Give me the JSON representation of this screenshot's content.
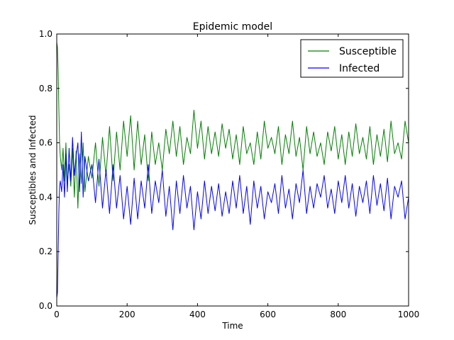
{
  "chart_data": {
    "type": "line",
    "title": "Epidemic model",
    "xlabel": "Time",
    "ylabel": "Susceptibles and Infected",
    "xlim": [
      0,
      1000
    ],
    "ylim": [
      0.0,
      1.0
    ],
    "xticks": [
      "0",
      "200",
      "400",
      "600",
      "800",
      "1000"
    ],
    "yticks": [
      "0.0",
      "0.2",
      "0.4",
      "0.6",
      "0.8",
      "1.0"
    ],
    "grid": false,
    "legend_position": "top-right",
    "series": [
      {
        "name": "Susceptible",
        "color": "#008000",
        "x": [
          0,
          2,
          4,
          6,
          8,
          10,
          14,
          18,
          22,
          26,
          30,
          35,
          40,
          45,
          50,
          55,
          60,
          65,
          70,
          75,
          80,
          90,
          100,
          110,
          120,
          130,
          140,
          150,
          160,
          170,
          180,
          190,
          200,
          210,
          220,
          230,
          240,
          250,
          260,
          270,
          280,
          290,
          300,
          310,
          320,
          330,
          340,
          350,
          360,
          370,
          380,
          390,
          400,
          410,
          420,
          430,
          440,
          450,
          460,
          470,
          480,
          490,
          500,
          510,
          520,
          530,
          540,
          550,
          560,
          570,
          580,
          590,
          600,
          610,
          620,
          630,
          640,
          650,
          660,
          670,
          680,
          690,
          700,
          710,
          720,
          730,
          740,
          750,
          760,
          770,
          780,
          790,
          800,
          810,
          820,
          830,
          840,
          850,
          860,
          870,
          880,
          890,
          900,
          910,
          920,
          930,
          940,
          950,
          960,
          970,
          980,
          990,
          1000
        ],
        "values": [
          0.97,
          0.95,
          0.86,
          0.72,
          0.6,
          0.55,
          0.5,
          0.58,
          0.46,
          0.6,
          0.45,
          0.52,
          0.44,
          0.58,
          0.4,
          0.57,
          0.36,
          0.56,
          0.45,
          0.6,
          0.42,
          0.55,
          0.47,
          0.6,
          0.44,
          0.62,
          0.48,
          0.66,
          0.46,
          0.64,
          0.5,
          0.68,
          0.55,
          0.7,
          0.5,
          0.68,
          0.52,
          0.63,
          0.46,
          0.64,
          0.52,
          0.6,
          0.5,
          0.65,
          0.56,
          0.68,
          0.55,
          0.66,
          0.52,
          0.62,
          0.56,
          0.72,
          0.58,
          0.68,
          0.54,
          0.66,
          0.56,
          0.64,
          0.55,
          0.67,
          0.58,
          0.65,
          0.54,
          0.63,
          0.52,
          0.66,
          0.56,
          0.6,
          0.52,
          0.64,
          0.54,
          0.68,
          0.58,
          0.62,
          0.56,
          0.66,
          0.52,
          0.63,
          0.56,
          0.68,
          0.55,
          0.62,
          0.5,
          0.66,
          0.56,
          0.64,
          0.55,
          0.6,
          0.52,
          0.64,
          0.57,
          0.66,
          0.54,
          0.63,
          0.52,
          0.64,
          0.55,
          0.67,
          0.56,
          0.62,
          0.54,
          0.66,
          0.52,
          0.63,
          0.55,
          0.65,
          0.53,
          0.68,
          0.56,
          0.6,
          0.54,
          0.68,
          0.6
        ]
      },
      {
        "name": "Infected",
        "color": "#0000ff",
        "x": [
          0,
          2,
          4,
          6,
          8,
          10,
          14,
          18,
          22,
          26,
          30,
          35,
          40,
          45,
          50,
          55,
          60,
          65,
          70,
          75,
          80,
          90,
          100,
          110,
          120,
          130,
          140,
          150,
          160,
          170,
          180,
          190,
          200,
          210,
          220,
          230,
          240,
          250,
          260,
          270,
          280,
          290,
          300,
          310,
          320,
          330,
          340,
          350,
          360,
          370,
          380,
          390,
          400,
          410,
          420,
          430,
          440,
          450,
          460,
          470,
          480,
          490,
          500,
          510,
          520,
          530,
          540,
          550,
          560,
          570,
          580,
          590,
          600,
          610,
          620,
          630,
          640,
          650,
          660,
          670,
          680,
          690,
          700,
          710,
          720,
          730,
          740,
          750,
          760,
          770,
          780,
          790,
          800,
          810,
          820,
          830,
          840,
          850,
          860,
          870,
          880,
          890,
          900,
          910,
          920,
          930,
          940,
          950,
          960,
          970,
          980,
          990,
          1000
        ],
        "values": [
          0.03,
          0.05,
          0.2,
          0.35,
          0.44,
          0.46,
          0.42,
          0.52,
          0.4,
          0.56,
          0.42,
          0.58,
          0.46,
          0.62,
          0.48,
          0.55,
          0.6,
          0.42,
          0.64,
          0.4,
          0.55,
          0.46,
          0.52,
          0.38,
          0.54,
          0.36,
          0.5,
          0.34,
          0.52,
          0.36,
          0.48,
          0.32,
          0.44,
          0.3,
          0.47,
          0.32,
          0.46,
          0.36,
          0.52,
          0.34,
          0.46,
          0.38,
          0.5,
          0.33,
          0.44,
          0.28,
          0.46,
          0.34,
          0.48,
          0.36,
          0.44,
          0.28,
          0.42,
          0.32,
          0.46,
          0.34,
          0.44,
          0.35,
          0.45,
          0.33,
          0.42,
          0.34,
          0.46,
          0.36,
          0.48,
          0.34,
          0.44,
          0.3,
          0.46,
          0.36,
          0.44,
          0.32,
          0.42,
          0.38,
          0.45,
          0.34,
          0.48,
          0.36,
          0.43,
          0.32,
          0.45,
          0.38,
          0.5,
          0.34,
          0.44,
          0.36,
          0.45,
          0.4,
          0.48,
          0.36,
          0.43,
          0.34,
          0.46,
          0.38,
          0.48,
          0.36,
          0.45,
          0.33,
          0.44,
          0.38,
          0.46,
          0.34,
          0.48,
          0.37,
          0.45,
          0.35,
          0.47,
          0.32,
          0.44,
          0.4,
          0.46,
          0.32,
          0.4
        ]
      }
    ]
  }
}
